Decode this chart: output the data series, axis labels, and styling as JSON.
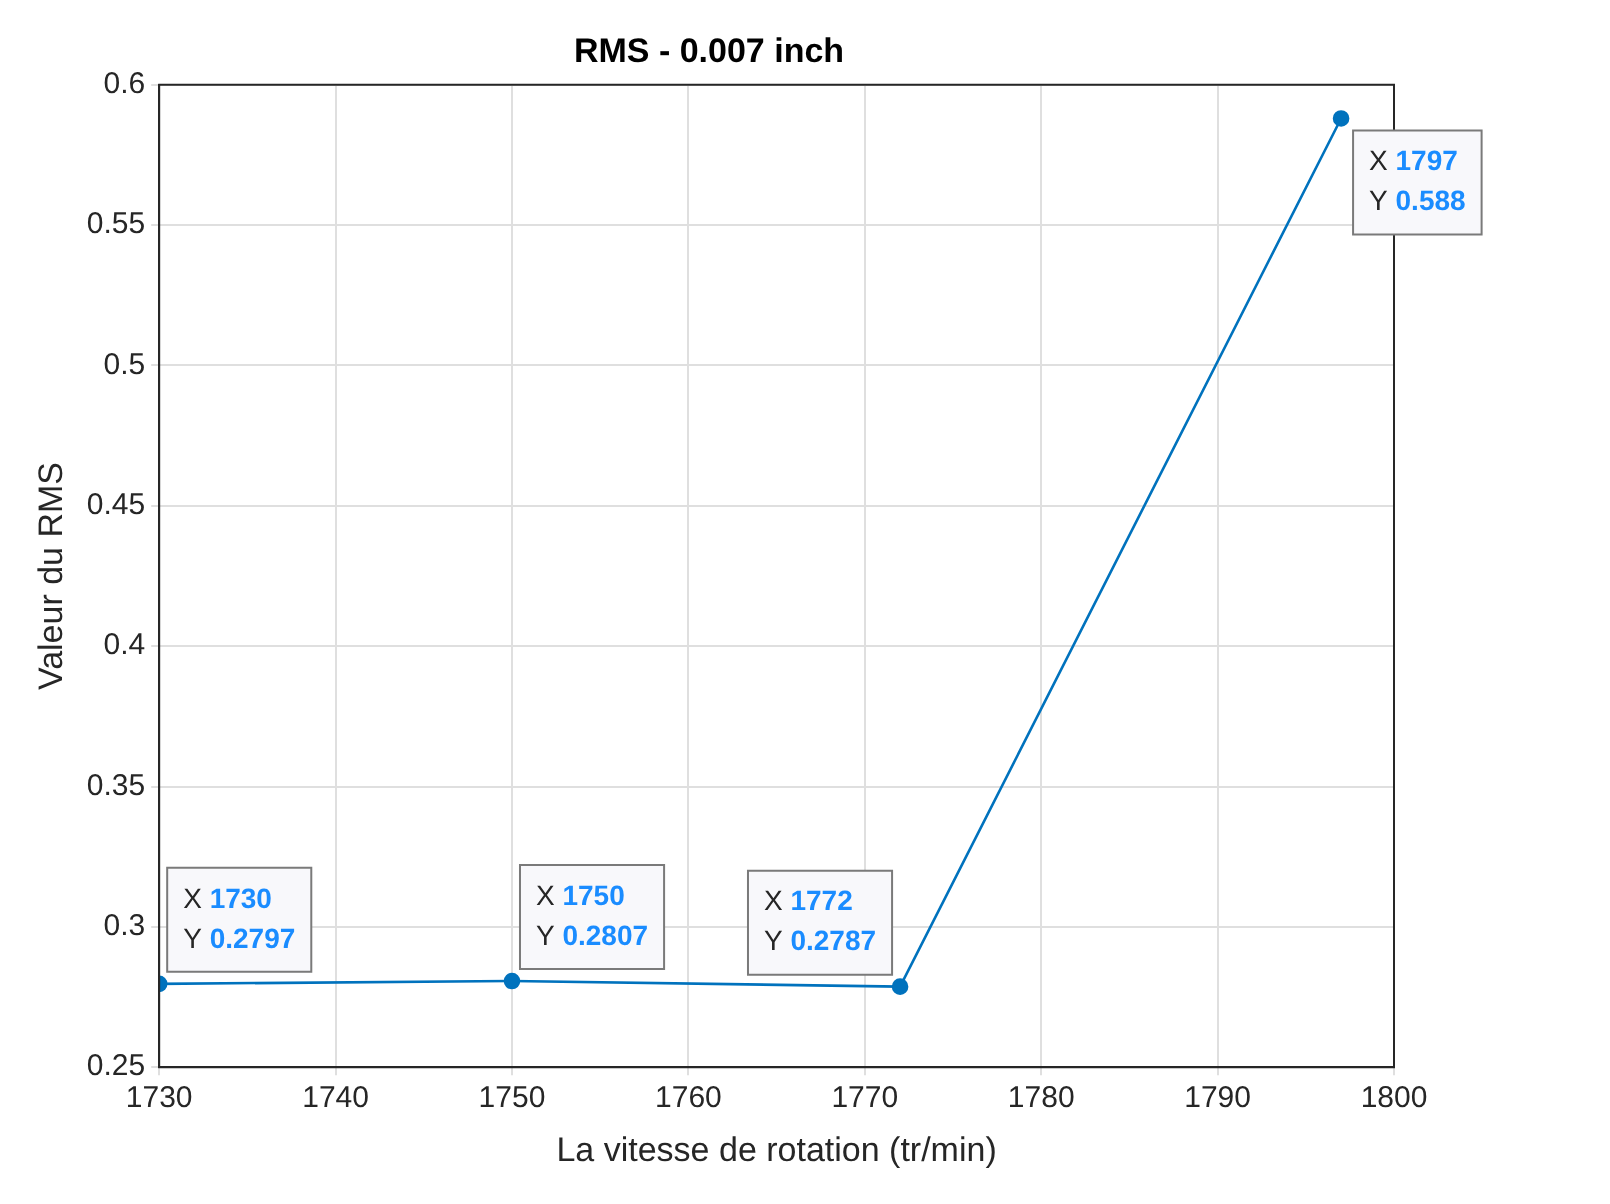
{
  "chart_data": {
    "type": "line",
    "title": "RMS - 0.007 inch",
    "xlabel": "La vitesse de rotation (tr/min)",
    "ylabel": "Valeur du RMS",
    "x": [
      1730,
      1750,
      1772,
      1797
    ],
    "series": [
      {
        "color": "#0072bd",
        "values": [
          0.2797,
          0.2807,
          0.2787,
          0.588
        ]
      }
    ],
    "xlim": [
      1730,
      1800
    ],
    "xticks": [
      1730,
      1740,
      1750,
      1760,
      1770,
      1780,
      1790,
      1800
    ],
    "ylim": [
      0.25,
      0.6
    ],
    "yticks": [
      0.25,
      0.3,
      0.35,
      0.4,
      0.45,
      0.5,
      0.55,
      0.6
    ],
    "grid": true,
    "legend": false,
    "marker": "circle",
    "line_style": "solid",
    "annotations": [
      {
        "text": "X 1730\nY 0.2797",
        "x": 1730,
        "y": 0.2797
      },
      {
        "text": "X 1750\nY 0.2807",
        "x": 1750,
        "y": 0.2807
      },
      {
        "text": "X 1772\nY 0.2787",
        "x": 1772,
        "y": 0.2787
      },
      {
        "text": "X 1797\nY 0.588",
        "x": 1797,
        "y": 0.588
      }
    ]
  }
}
